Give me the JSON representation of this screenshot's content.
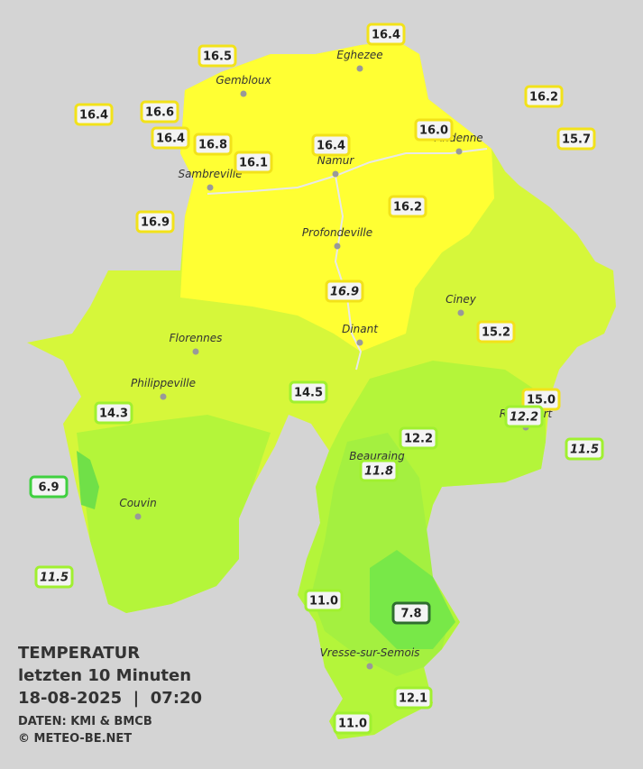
{
  "title": {
    "heading": "TEMPERATUR",
    "subtitle": "letzten 10 Minuten",
    "datetime": "18-08-2025  |  07:20",
    "source": "DATEN: KMI & BMCB",
    "copyright": "© METEO-BE.NET"
  },
  "cities": [
    "Eghezee",
    "Gembloux",
    "Andenne",
    "Namur",
    "Sambreville",
    "Profondeville",
    "Ciney",
    "Florennes",
    "Dinant",
    "Philippeville",
    "Beauraing",
    "Rochefort",
    "Couvin",
    "Vresse-sur-Semois"
  ],
  "stations": [
    16.4,
    16.5,
    16.2,
    16.4,
    16.6,
    16.4,
    16.8,
    {
      "value": 16,
      "label": "16.0"
    },
    15.7,
    16.4,
    16.1,
    16.2,
    16.9,
    16.9,
    15.2,
    14.5,
    14.3,
    {
      "value": 15,
      "label": "15.0"
    },
    12.2,
    12.2,
    11.5,
    11.8,
    6.9,
    11.5,
    {
      "value": 11,
      "label": "11.0"
    },
    7.8,
    12.1,
    {
      "value": 11,
      "label": "11.0"
    }
  ]
}
